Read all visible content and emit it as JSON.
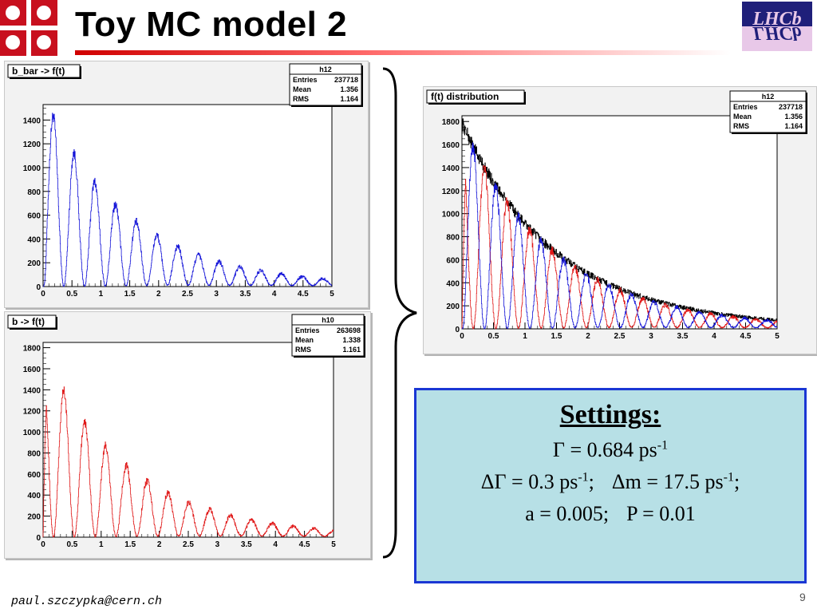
{
  "slide": {
    "title": "Toy MC model 2",
    "footer": "paul.szczypka@cern.ch",
    "page": "9"
  },
  "logo_text": "LHCb",
  "settings": {
    "heading": "Settings:",
    "gamma": {
      "lhs": "Γ = 0.684 ps",
      "exp": "-1"
    },
    "dgamma": {
      "lhs": "ΔΓ = 0.3 ps",
      "exp": "-1",
      "sep": ";"
    },
    "dm": {
      "lhs": "Δm = 17.5 ps",
      "exp": "-1",
      "sep": ";"
    },
    "a": "a = 0.005;",
    "p": "P = 0.01"
  },
  "chart_data": [
    {
      "type": "histogram",
      "title": "b_bar -> f(t)",
      "stats": {
        "name": "h12",
        "entries": "237718",
        "mean": "1.356",
        "rms": "1.164"
      },
      "xlim": [
        0,
        5
      ],
      "ylim": [
        0,
        1530
      ],
      "xticks": [
        0,
        0.5,
        1,
        1.5,
        2,
        2.5,
        3,
        3.5,
        4,
        4.5,
        5
      ],
      "yticks": [
        0,
        200,
        400,
        600,
        800,
        1000,
        1200,
        1400
      ],
      "series": [
        {
          "color": "#1414d8",
          "model": {
            "amplitude": 1620,
            "gamma": 0.684,
            "dgamma": 0.3,
            "dm": 17.5,
            "sign": -1
          }
        }
      ]
    },
    {
      "type": "histogram",
      "title": "b -> f(t)",
      "stats": {
        "name": "h10",
        "entries": "263698",
        "mean": "1.338",
        "rms": "1.161"
      },
      "xlim": [
        0,
        5
      ],
      "ylim": [
        0,
        1850
      ],
      "xticks": [
        0,
        0.5,
        1,
        1.5,
        2,
        2.5,
        3,
        3.5,
        4,
        4.5,
        5
      ],
      "yticks": [
        0,
        200,
        400,
        600,
        800,
        1000,
        1200,
        1400,
        1600,
        1800
      ],
      "series": [
        {
          "color": "#e01818",
          "model": {
            "amplitude": 1790,
            "gamma": 0.684,
            "dgamma": 0.3,
            "dm": 17.5,
            "sign": 1
          }
        }
      ]
    },
    {
      "type": "histogram",
      "title": "f(t) distribution",
      "stats": {
        "name": "h12",
        "entries": "237718",
        "mean": "1.356",
        "rms": "1.164"
      },
      "xlim": [
        0,
        5
      ],
      "ylim": [
        0,
        1850
      ],
      "xticks": [
        0,
        0.5,
        1,
        1.5,
        2,
        2.5,
        3,
        3.5,
        4,
        4.5,
        5
      ],
      "yticks": [
        0,
        200,
        400,
        600,
        800,
        1000,
        1200,
        1400,
        1600,
        1800
      ],
      "series": [
        {
          "color": "#000000",
          "model": {
            "amplitude": 1790,
            "gamma": 0.684,
            "dgamma": 0.3,
            "dm": 17.5,
            "sign": 0
          }
        },
        {
          "color": "#e01818",
          "model": {
            "amplitude": 1790,
            "gamma": 0.684,
            "dgamma": 0.3,
            "dm": 17.5,
            "sign": 1
          }
        },
        {
          "color": "#1414d8",
          "model": {
            "amplitude": 1790,
            "gamma": 0.684,
            "dgamma": 0.3,
            "dm": 17.5,
            "sign": -1
          }
        }
      ]
    }
  ]
}
